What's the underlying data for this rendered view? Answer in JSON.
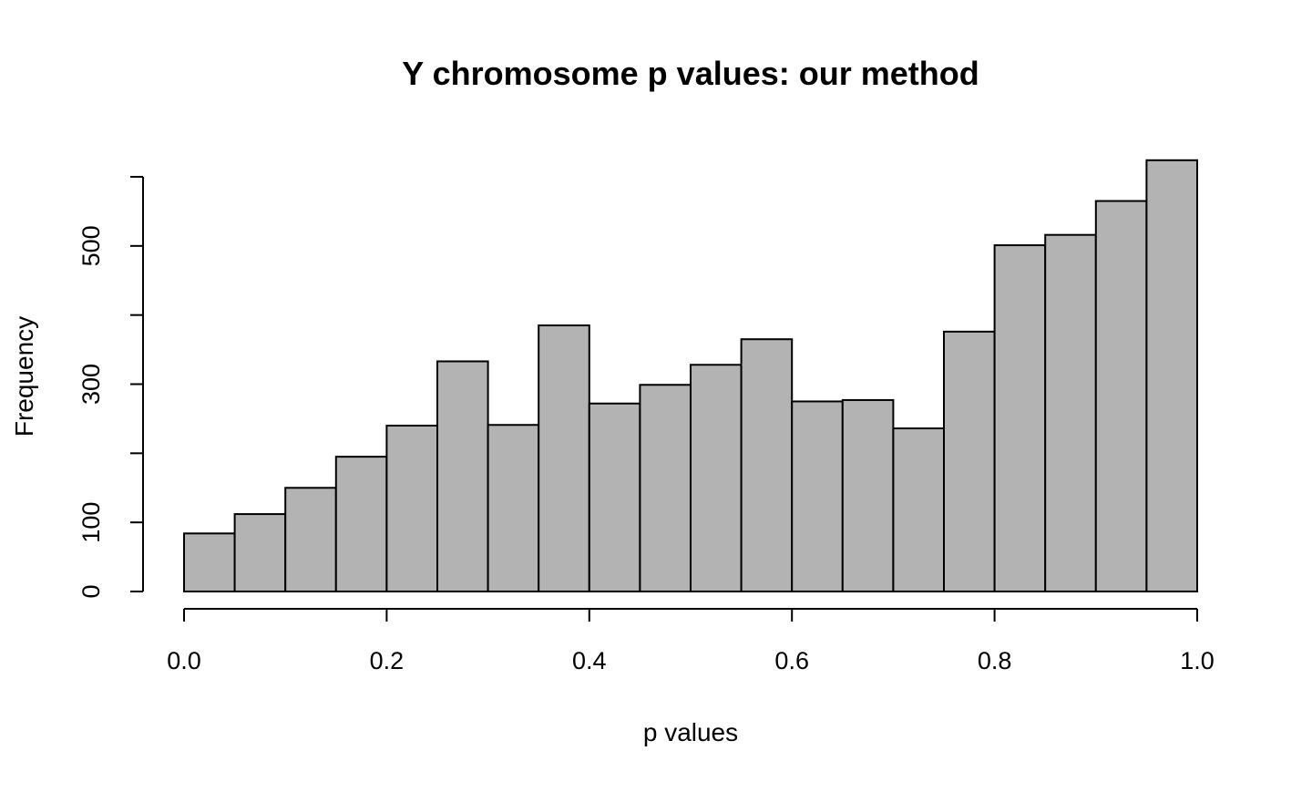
{
  "chart_data": {
    "type": "histogram",
    "title": "Y chromosome p values: our method",
    "xlabel": "p values",
    "ylabel": "Frequency",
    "bin_edges": [
      0.0,
      0.05,
      0.1,
      0.15,
      0.2,
      0.25,
      0.3,
      0.35,
      0.4,
      0.45,
      0.5,
      0.55,
      0.6,
      0.65,
      0.7,
      0.75,
      0.8,
      0.85,
      0.9,
      0.95,
      1.0
    ],
    "values": [
      84,
      112,
      150,
      195,
      240,
      333,
      241,
      385,
      272,
      299,
      328,
      365,
      275,
      277,
      236,
      376,
      501,
      516,
      565,
      624
    ],
    "xlim": [
      0.0,
      1.0
    ],
    "ylim": [
      0,
      600
    ],
    "x_ticks": [
      0.0,
      0.2,
      0.4,
      0.6,
      0.8,
      1.0
    ],
    "x_tick_labels": [
      "0.0",
      "0.2",
      "0.4",
      "0.6",
      "0.8",
      "1.0"
    ],
    "y_ticks": [
      0,
      100,
      200,
      300,
      400,
      500,
      600
    ],
    "y_tick_labels": [
      "0",
      "100",
      "",
      "300",
      "",
      "500",
      ""
    ],
    "bar_color": "#b3b3b3",
    "edge_color": "#000000",
    "grid": false
  }
}
